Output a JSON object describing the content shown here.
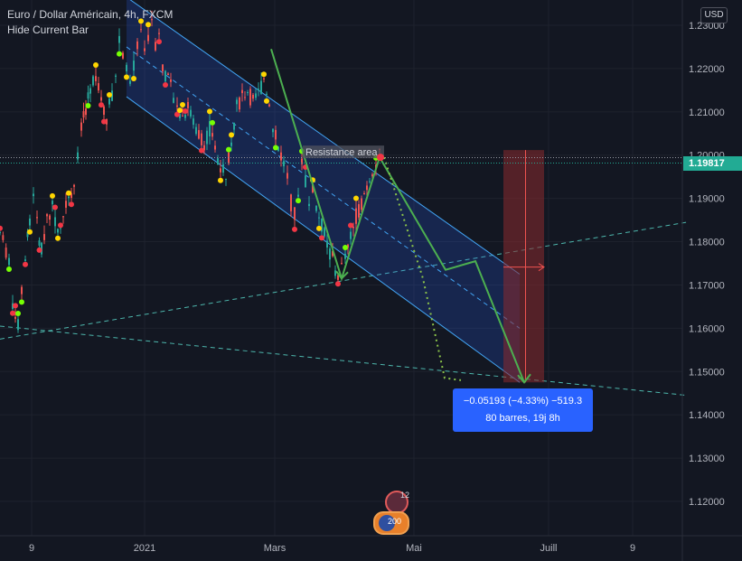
{
  "header": {
    "title": "Euro / Dollar Américain, 4h, FXCM",
    "subtitle": "Hide Current Bar"
  },
  "currency_button": "USD",
  "current_price": "1.19817",
  "annotation": "Resistance area",
  "measure": {
    "line1": "−0.05193 (−4.33%) −519.3",
    "line2": "80 barres, 19j 8h"
  },
  "events": {
    "badge1": "12",
    "badge2": "200"
  },
  "colors": {
    "background": "#131722",
    "channel": "#2962ff",
    "channel_line": "#42a5f5",
    "up": "#26a69a",
    "down": "#ef5350",
    "projection": "#4caf50",
    "dot_yellow": "#ffd600",
    "dot_green": "#76ff03",
    "dot_red": "#f23645",
    "short_zone": "#8b2a2e",
    "price_tag": "#22ab94",
    "measure": "#2962ff"
  },
  "chart_data": {
    "type": "candlestick",
    "symbol": "Euro / Dollar Américain",
    "interval": "4h",
    "source": "FXCM",
    "x_tick_labels": [
      "9",
      "2021",
      "Mars",
      "Mai",
      "Juill",
      "9"
    ],
    "y_tick_labels": [
      "1.23000",
      "1.22000",
      "1.21000",
      "1.20000",
      "1.19000",
      "1.18000",
      "1.17000",
      "1.16000",
      "1.15000",
      "1.14000",
      "1.13000",
      "1.12000"
    ],
    "ylim": [
      1.1065,
      1.2335
    ],
    "last_price": 1.19817,
    "ohlc_path": [
      [
        0,
        1.182
      ],
      [
        10,
        1.176
      ],
      [
        14,
        1.166
      ],
      [
        20,
        1.161
      ],
      [
        24,
        1.168
      ],
      [
        28,
        1.177
      ],
      [
        33,
        1.184
      ],
      [
        37,
        1.192
      ],
      [
        41,
        1.184
      ],
      [
        46,
        1.178
      ],
      [
        52,
        1.186
      ],
      [
        58,
        1.188
      ],
      [
        64,
        1.183
      ],
      [
        70,
        1.186
      ],
      [
        76,
        1.191
      ],
      [
        82,
        1.193
      ],
      [
        86,
        1.199
      ],
      [
        90,
        1.206
      ],
      [
        95,
        1.211
      ],
      [
        100,
        1.216
      ],
      [
        106,
        1.219
      ],
      [
        112,
        1.213
      ],
      [
        118,
        1.209
      ],
      [
        124,
        1.214
      ],
      [
        128,
        1.219
      ],
      [
        132,
        1.227
      ],
      [
        136,
        1.224
      ],
      [
        140,
        1.219
      ],
      [
        144,
        1.216
      ],
      [
        148,
        1.221
      ],
      [
        152,
        1.226
      ],
      [
        156,
        1.229
      ],
      [
        160,
        1.223
      ],
      [
        164,
        1.228
      ],
      [
        168,
        1.232
      ],
      [
        172,
        1.226
      ],
      [
        176,
        1.229
      ],
      [
        180,
        1.221
      ],
      [
        186,
        1.217
      ],
      [
        192,
        1.214
      ],
      [
        196,
        1.212
      ],
      [
        202,
        1.209
      ],
      [
        208,
        1.211
      ],
      [
        214,
        1.208
      ],
      [
        220,
        1.205
      ],
      [
        226,
        1.203
      ],
      [
        232,
        1.206
      ],
      [
        238,
        1.201
      ],
      [
        244,
        1.198
      ],
      [
        250,
        1.196
      ],
      [
        256,
        1.204
      ],
      [
        262,
        1.211
      ],
      [
        268,
        1.214
      ],
      [
        274,
        1.215
      ],
      [
        280,
        1.212
      ],
      [
        286,
        1.214
      ],
      [
        292,
        1.218
      ],
      [
        298,
        1.213
      ],
      [
        302,
        1.206
      ],
      [
        308,
        1.202
      ],
      [
        314,
        1.198
      ],
      [
        318,
        1.195
      ],
      [
        322,
        1.189
      ],
      [
        326,
        1.186
      ],
      [
        330,
        1.192
      ],
      [
        334,
        1.198
      ],
      [
        338,
        1.194
      ],
      [
        342,
        1.189
      ],
      [
        346,
        1.192
      ],
      [
        350,
        1.188
      ],
      [
        356,
        1.184
      ],
      [
        362,
        1.179
      ],
      [
        368,
        1.176
      ],
      [
        374,
        1.172
      ],
      [
        378,
        1.174
      ],
      [
        382,
        1.176
      ],
      [
        388,
        1.181
      ],
      [
        394,
        1.186
      ],
      [
        400,
        1.189
      ],
      [
        406,
        1.193
      ],
      [
        412,
        1.197
      ],
      [
        416,
        1.198
      ],
      [
        420,
        1.1995
      ],
      [
        424,
        1.1982
      ]
    ],
    "channel": {
      "upper": [
        [
          140,
          1.2365
        ],
        [
          575,
          1.1725
        ]
      ],
      "lower": [
        [
          140,
          1.2135
        ],
        [
          575,
          1.1475
        ]
      ],
      "mid": [
        [
          140,
          1.225
        ],
        [
          575,
          1.16
        ]
      ]
    },
    "zigzag": [
      [
        300,
        1.2245
      ],
      [
        378,
        1.1715
      ],
      [
        420,
        1.1995
      ],
      [
        493,
        1.1735
      ],
      [
        526,
        1.1755
      ],
      [
        580,
        1.1475
      ]
    ],
    "dotted_projection": [
      [
        425,
        1.1995
      ],
      [
        468,
        1.1715
      ],
      [
        492,
        1.1485
      ],
      [
        510,
        1.148
      ]
    ],
    "trendline_up": [
      [
        0,
        1.1575
      ],
      [
        760,
        1.1845
      ]
    ],
    "trendline_down": [
      [
        0,
        1.1605
      ],
      [
        760,
        1.1445
      ]
    ],
    "short_position": {
      "entry": 1.1995,
      "target": 1.1475,
      "x_range": [
        557,
        602
      ]
    },
    "resistance_level": 1.1995
  }
}
